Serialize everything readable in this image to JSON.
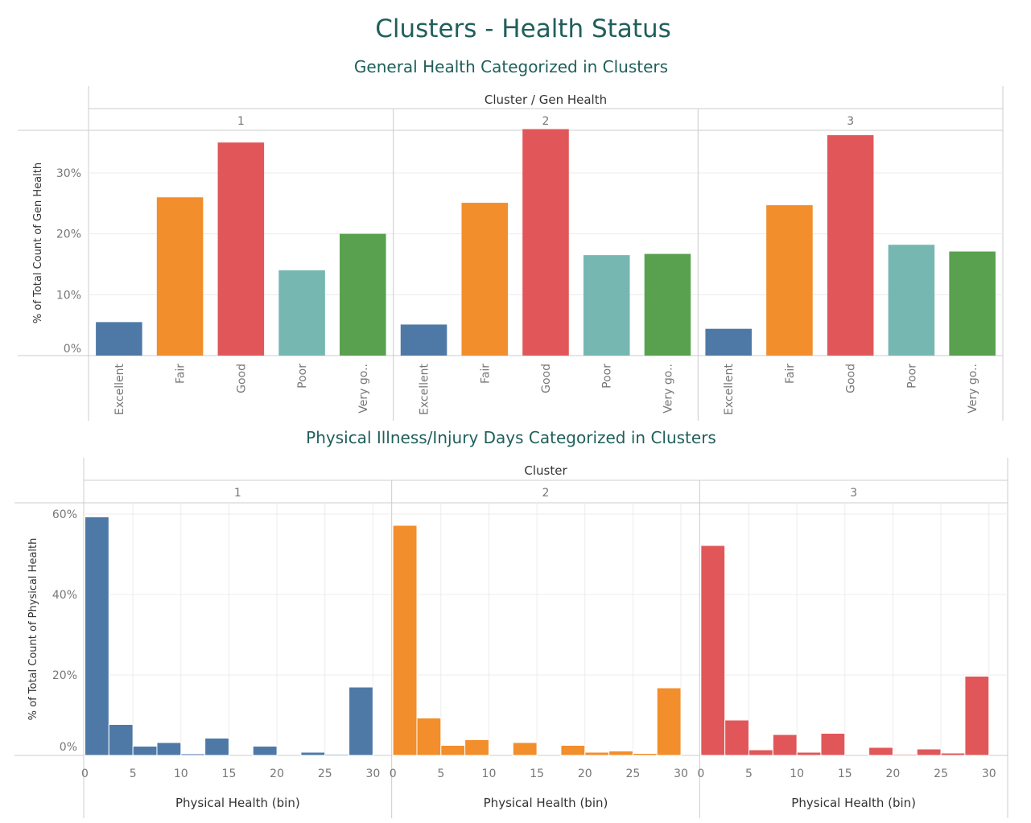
{
  "dashboard": {
    "title": "Clusters - Health Status"
  },
  "colors": {
    "title": "#1f5f5b",
    "excellent": "#4e79a7",
    "fair": "#f28e2b",
    "good": "#e15759",
    "poor": "#76b7b2",
    "very_good": "#59a14f",
    "grid": "#ececec",
    "axis": "#cccccc",
    "label": "#777777",
    "header": "#333333"
  },
  "chart_data": [
    {
      "type": "bar",
      "title": "General Health Categorized in Clusters",
      "column_header": "Cluster / Gen Health",
      "ylabel": "% of Total Count of Gen Health",
      "ylim": [
        0,
        37
      ],
      "y_ticks": [
        0,
        10,
        20,
        30
      ],
      "y_tick_labels": [
        "0%",
        "10%",
        "20%",
        "30%"
      ],
      "categories": [
        "Excellent",
        "Fair",
        "Good",
        "Poor",
        "Very go.."
      ],
      "panels": [
        {
          "label": "1",
          "values": [
            5.5,
            26,
            35,
            14,
            20
          ]
        },
        {
          "label": "2",
          "values": [
            5.1,
            25.1,
            37.2,
            16.5,
            16.7
          ]
        },
        {
          "label": "3",
          "values": [
            4.4,
            24.7,
            36.2,
            18.2,
            17.1
          ]
        }
      ]
    },
    {
      "type": "bar",
      "title": "Physical Illness/Injury Days Categorized in Clusters",
      "column_header": "Cluster",
      "xlabel": "Physical Health (bin)",
      "ylabel": "% of Total Count of Physical Health",
      "ylim": [
        0,
        60
      ],
      "y_ticks": [
        0,
        20,
        40,
        60
      ],
      "y_tick_labels": [
        "0%",
        "20%",
        "40%",
        "60%"
      ],
      "x_ticks": [
        0,
        5,
        10,
        15,
        20,
        25,
        30
      ],
      "bin_width": 2.5,
      "x_range": [
        0,
        30
      ],
      "bins": [
        0,
        2.5,
        5,
        7.5,
        10,
        12.5,
        15,
        17.5,
        20,
        22.5,
        25,
        27.5,
        30
      ],
      "panels": [
        {
          "label": "1",
          "values": [
            59.3,
            7.7,
            2.3,
            3.2,
            0.4,
            4.3,
            0,
            2.3,
            0,
            0.8,
            0.3,
            17
          ],
          "color_key": "excellent"
        },
        {
          "label": "2",
          "values": [
            57.2,
            9.3,
            2.5,
            3.9,
            0,
            3.2,
            0,
            2.5,
            0.8,
            1.1,
            0.5,
            16.8
          ],
          "color_key": "fair"
        },
        {
          "label": "3",
          "values": [
            52.2,
            8.8,
            1.4,
            5.2,
            0.8,
            5.5,
            0,
            2,
            0.3,
            1.6,
            0.6,
            19.7
          ],
          "color_key": "good"
        }
      ]
    }
  ]
}
